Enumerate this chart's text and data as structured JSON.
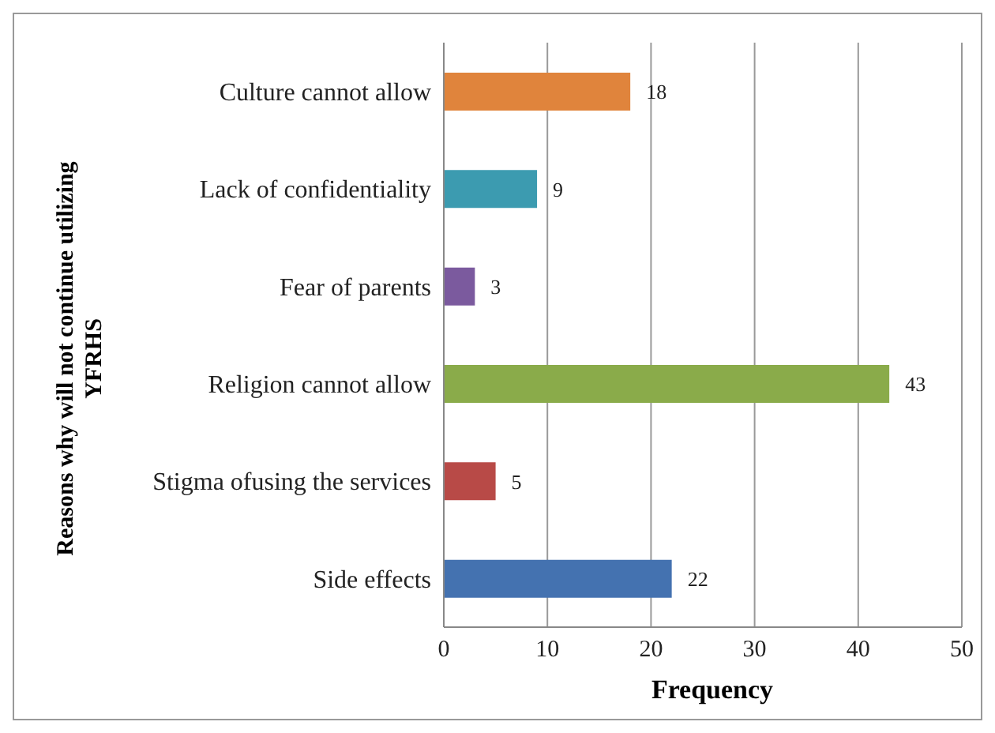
{
  "chart_data": {
    "type": "bar",
    "orientation": "horizontal",
    "ylabel": "Reasons why will not continue utilizing YFRHS",
    "xlabel": "Frequency",
    "categories": [
      "Culture cannot allow",
      "Lack of confidentiality",
      "Fear of parents",
      "Religion cannot allow",
      "Stigma ofusing the services",
      "Side effects"
    ],
    "values": [
      18,
      9,
      3,
      43,
      5,
      22
    ],
    "colors": [
      "#e0843c",
      "#3c9bb0",
      "#7b5a9e",
      "#8aab4a",
      "#b84a47",
      "#4472b0"
    ],
    "xlim": [
      0,
      50
    ],
    "xticks": [
      0,
      10,
      20,
      30,
      40,
      50
    ],
    "grid": "x",
    "data_labels": true,
    "legend": false
  }
}
